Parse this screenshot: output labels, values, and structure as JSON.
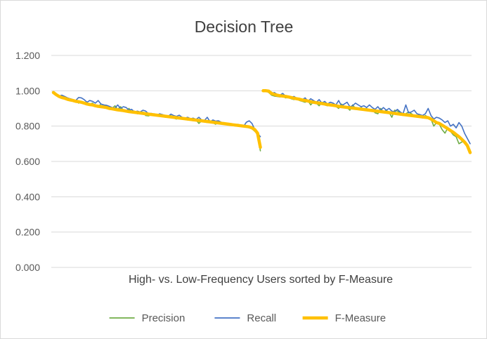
{
  "chart_data": {
    "type": "line",
    "title": "Decision Tree",
    "xlabel": "High- vs. Low-Frequency Users sorted by F-Measure",
    "ylabel": "",
    "ylim": [
      0,
      1.2
    ],
    "yticks": [
      "0.000",
      "0.200",
      "0.400",
      "0.600",
      "0.800",
      "1.000",
      "1.200"
    ],
    "grid": true,
    "legend_position": "bottom",
    "groups": [
      {
        "x": [
          1,
          2,
          3,
          4,
          5,
          6,
          7,
          8,
          9,
          10,
          11,
          12,
          13,
          14,
          15,
          16,
          17,
          18,
          19,
          20,
          21,
          22,
          23,
          24,
          25,
          26,
          27,
          28,
          29,
          30,
          31,
          32,
          33,
          34,
          35,
          36,
          37,
          38,
          39,
          40,
          41,
          42,
          43,
          44,
          45,
          46,
          47,
          48,
          49,
          50,
          51,
          52,
          53,
          54,
          55,
          56,
          57,
          58,
          59,
          60,
          61,
          62,
          63,
          64,
          65,
          66,
          67,
          68,
          69,
          70,
          71,
          72,
          73,
          74,
          75
        ],
        "series": [
          {
            "name": "Precision",
            "color": "#70ad47",
            "values": [
              0.99,
              0.975,
              0.965,
              0.96,
              0.955,
              0.948,
              0.945,
              0.95,
              0.945,
              0.93,
              0.94,
              0.935,
              0.92,
              0.925,
              0.93,
              0.915,
              0.91,
              0.925,
              0.92,
              0.915,
              0.905,
              0.9,
              0.915,
              0.895,
              0.91,
              0.89,
              0.885,
              0.9,
              0.88,
              0.885,
              0.87,
              0.875,
              0.88,
              0.86,
              0.858,
              0.865,
              0.87,
              0.86,
              0.855,
              0.86,
              0.85,
              0.858,
              0.86,
              0.845,
              0.84,
              0.845,
              0.85,
              0.84,
              0.835,
              0.838,
              0.83,
              0.835,
              0.815,
              0.83,
              0.825,
              0.82,
              0.822,
              0.82,
              0.81,
              0.825,
              0.815,
              0.82,
              0.812,
              0.805,
              0.808,
              0.8,
              0.81,
              0.803,
              0.8,
              0.795,
              0.79,
              0.785,
              0.77,
              0.76,
              0.66
            ]
          },
          {
            "name": "Recall",
            "color": "#4472c4",
            "values": [
              0.99,
              0.98,
              0.97,
              0.975,
              0.968,
              0.96,
              0.955,
              0.95,
              0.945,
              0.962,
              0.96,
              0.95,
              0.935,
              0.945,
              0.94,
              0.93,
              0.945,
              0.925,
              0.92,
              0.918,
              0.912,
              0.905,
              0.902,
              0.92,
              0.9,
              0.91,
              0.905,
              0.89,
              0.895,
              0.88,
              0.885,
              0.88,
              0.89,
              0.885,
              0.87,
              0.872,
              0.868,
              0.86,
              0.87,
              0.865,
              0.86,
              0.855,
              0.868,
              0.86,
              0.855,
              0.862,
              0.85,
              0.845,
              0.85,
              0.842,
              0.845,
              0.838,
              0.85,
              0.835,
              0.832,
              0.85,
              0.825,
              0.835,
              0.828,
              0.83,
              0.822,
              0.818,
              0.815,
              0.81,
              0.812,
              0.808,
              0.805,
              0.8,
              0.798,
              0.822,
              0.83,
              0.815,
              0.78,
              0.76,
              0.74
            ]
          },
          {
            "name": "F-Measure",
            "color": "#ffc000",
            "values": [
              0.99,
              0.978,
              0.968,
              0.962,
              0.958,
              0.952,
              0.948,
              0.945,
              0.94,
              0.938,
              0.935,
              0.93,
              0.925,
              0.922,
              0.92,
              0.915,
              0.912,
              0.91,
              0.908,
              0.905,
              0.9,
              0.898,
              0.895,
              0.892,
              0.89,
              0.888,
              0.885,
              0.882,
              0.88,
              0.878,
              0.876,
              0.874,
              0.872,
              0.87,
              0.868,
              0.866,
              0.864,
              0.862,
              0.86,
              0.858,
              0.856,
              0.854,
              0.852,
              0.85,
              0.848,
              0.846,
              0.844,
              0.842,
              0.84,
              0.838,
              0.836,
              0.834,
              0.832,
              0.83,
              0.828,
              0.826,
              0.824,
              0.822,
              0.82,
              0.818,
              0.816,
              0.814,
              0.812,
              0.81,
              0.808,
              0.806,
              0.804,
              0.802,
              0.8,
              0.798,
              0.796,
              0.79,
              0.78,
              0.76,
              0.68
            ]
          }
        ]
      },
      {
        "x": [
          76,
          77,
          78,
          79,
          80,
          81,
          82,
          83,
          84,
          85,
          86,
          87,
          88,
          89,
          90,
          91,
          92,
          93,
          94,
          95,
          96,
          97,
          98,
          99,
          100,
          101,
          102,
          103,
          104,
          105,
          106,
          107,
          108,
          109,
          110,
          111,
          112,
          113,
          114,
          115,
          116,
          117,
          118,
          119,
          120,
          121,
          122,
          123,
          124,
          125,
          126,
          127,
          128,
          129,
          130,
          131,
          132,
          133,
          134,
          135,
          136,
          137,
          138,
          139,
          140,
          141,
          142,
          143,
          144,
          145,
          146,
          147,
          148,
          149,
          150
        ],
        "series": [
          {
            "name": "Precision",
            "color": "#70ad47",
            "values": [
              1.0,
              1.0,
              0.99,
              0.975,
              0.97,
              0.968,
              0.965,
              0.97,
              0.96,
              0.962,
              0.955,
              0.95,
              0.958,
              0.945,
              0.94,
              0.935,
              0.945,
              0.92,
              0.938,
              0.93,
              0.915,
              0.935,
              0.92,
              0.915,
              0.925,
              0.92,
              0.912,
              0.9,
              0.925,
              0.91,
              0.905,
              0.89,
              0.92,
              0.9,
              0.895,
              0.905,
              0.895,
              0.9,
              0.89,
              0.895,
              0.875,
              0.87,
              0.9,
              0.88,
              0.89,
              0.878,
              0.85,
              0.89,
              0.885,
              0.875,
              0.86,
              0.87,
              0.88,
              0.87,
              0.86,
              0.858,
              0.865,
              0.845,
              0.86,
              0.85,
              0.84,
              0.8,
              0.82,
              0.81,
              0.78,
              0.76,
              0.79,
              0.77,
              0.75,
              0.74,
              0.7,
              0.71,
              0.715,
              0.69,
              0.66
            ]
          },
          {
            "name": "Recall",
            "color": "#4472c4",
            "values": [
              1.0,
              1.0,
              0.998,
              0.985,
              0.99,
              0.98,
              0.975,
              0.985,
              0.97,
              0.968,
              0.962,
              0.968,
              0.958,
              0.955,
              0.95,
              0.96,
              0.94,
              0.955,
              0.945,
              0.935,
              0.95,
              0.93,
              0.94,
              0.925,
              0.935,
              0.93,
              0.92,
              0.945,
              0.915,
              0.925,
              0.935,
              0.91,
              0.915,
              0.93,
              0.92,
              0.91,
              0.915,
              0.905,
              0.92,
              0.905,
              0.895,
              0.91,
              0.89,
              0.905,
              0.89,
              0.9,
              0.885,
              0.88,
              0.895,
              0.88,
              0.87,
              0.92,
              0.875,
              0.88,
              0.89,
              0.87,
              0.865,
              0.86,
              0.87,
              0.9,
              0.86,
              0.84,
              0.85,
              0.845,
              0.835,
              0.82,
              0.83,
              0.8,
              0.81,
              0.79,
              0.82,
              0.8,
              0.76,
              0.73,
              0.7
            ]
          },
          {
            "name": "F-Measure",
            "color": "#ffc000",
            "values": [
              1.0,
              1.0,
              0.998,
              0.985,
              0.98,
              0.975,
              0.972,
              0.97,
              0.968,
              0.965,
              0.962,
              0.958,
              0.955,
              0.952,
              0.948,
              0.945,
              0.942,
              0.938,
              0.935,
              0.932,
              0.93,
              0.928,
              0.925,
              0.922,
              0.92,
              0.918,
              0.915,
              0.912,
              0.91,
              0.908,
              0.906,
              0.904,
              0.902,
              0.9,
              0.898,
              0.896,
              0.894,
              0.892,
              0.89,
              0.888,
              0.886,
              0.884,
              0.882,
              0.88,
              0.878,
              0.876,
              0.874,
              0.872,
              0.87,
              0.868,
              0.866,
              0.864,
              0.862,
              0.86,
              0.858,
              0.856,
              0.854,
              0.852,
              0.85,
              0.848,
              0.84,
              0.83,
              0.82,
              0.815,
              0.805,
              0.795,
              0.785,
              0.775,
              0.765,
              0.752,
              0.74,
              0.725,
              0.71,
              0.69,
              0.65
            ]
          }
        ]
      }
    ],
    "legend": [
      {
        "name": "Precision",
        "color": "#70ad47"
      },
      {
        "name": "Recall",
        "color": "#4472c4"
      },
      {
        "name": "F-Measure",
        "color": "#ffc000"
      }
    ]
  }
}
